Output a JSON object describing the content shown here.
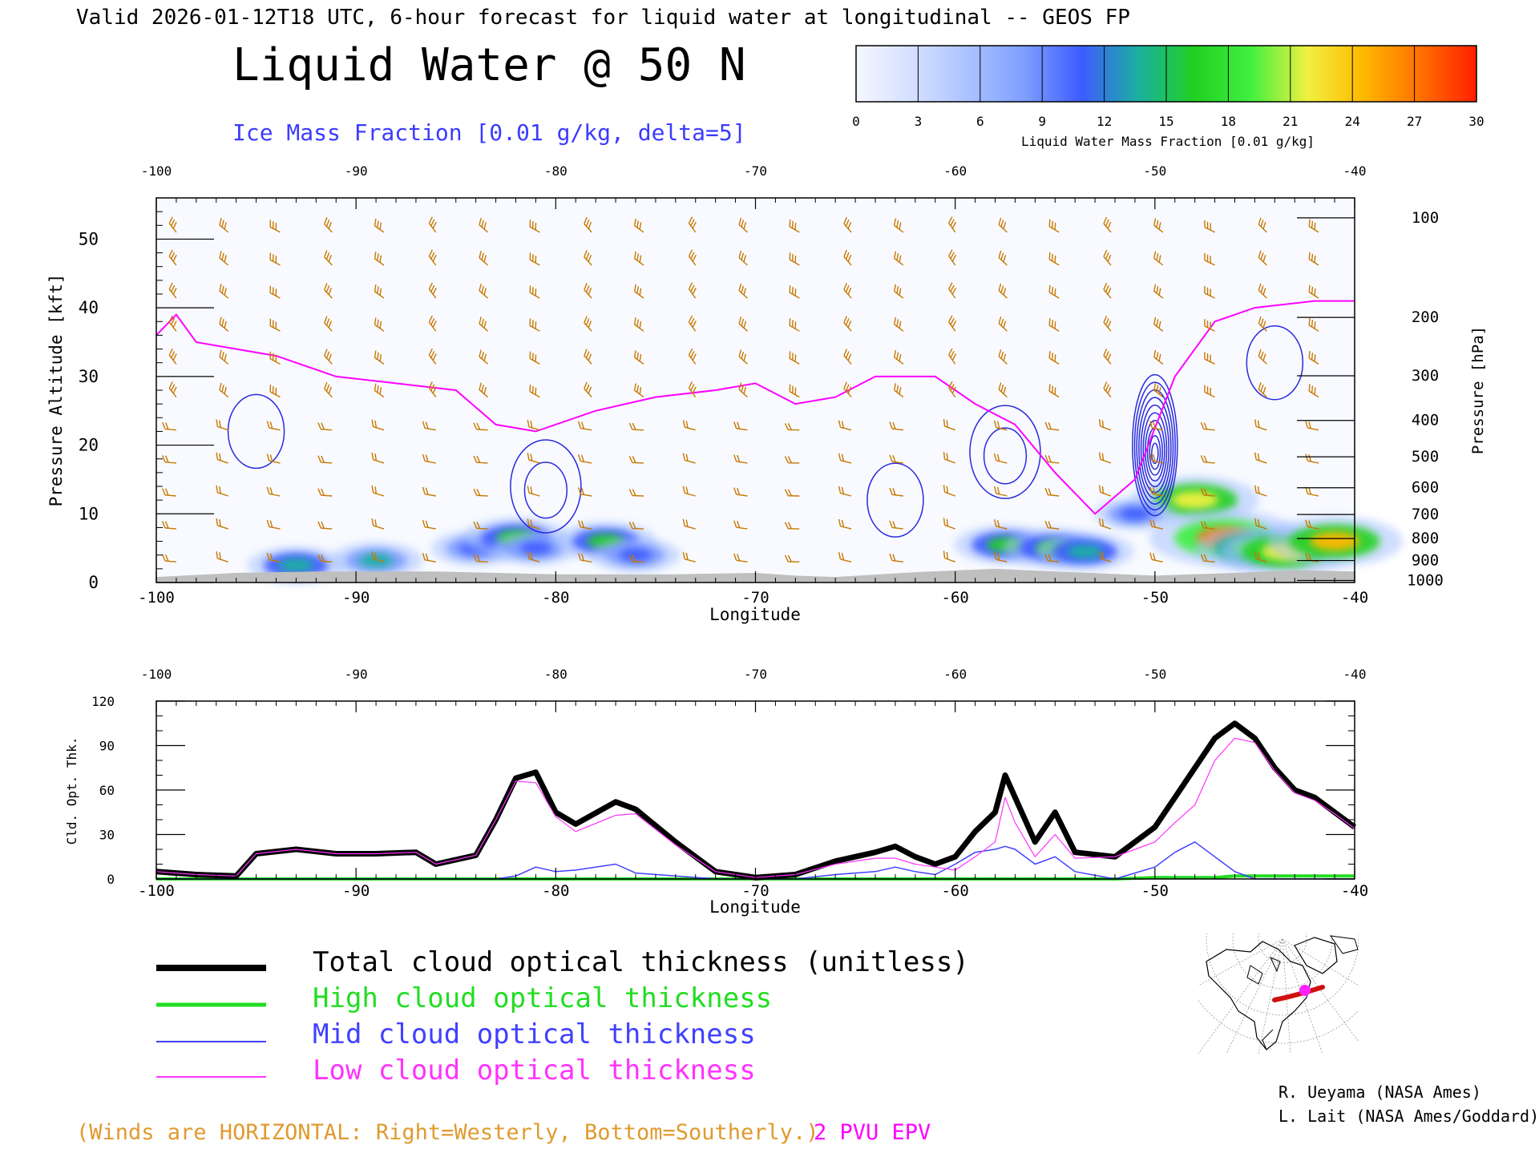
{
  "header": {
    "valid_line": "Valid 2026-01-12T18 UTC, 6-hour forecast for liquid water at longitudinal -- GEOS FP",
    "title": "Liquid Water @ 50 N",
    "subtitle": "Ice Mass Fraction [0.01 g/kg, delta=5]"
  },
  "colorbar": {
    "ticks": [
      "0",
      "3",
      "6",
      "9",
      "12",
      "15",
      "18",
      "21",
      "24",
      "27",
      "30"
    ],
    "label": "Liquid Water Mass Fraction [0.01 g/kg]",
    "colors": [
      "#f5f7ff",
      "#d4e0ff",
      "#a9c2ff",
      "#7e9dff",
      "#3d5cff",
      "#1ab0a0",
      "#20d020",
      "#40f040",
      "#f0f040",
      "#ffb800",
      "#ff7000",
      "#ff2000"
    ]
  },
  "top_panel": {
    "ylabel_left": "Pressure Altitude [kft]",
    "ylabel_right": "Pressure [hPa]",
    "xlabel": "Longitude",
    "x_ticks": [
      "-100",
      "-90",
      "-80",
      "-70",
      "-60",
      "-50",
      "-40"
    ],
    "y_ticks": [
      "0",
      "10",
      "20",
      "30",
      "40",
      "50"
    ],
    "pressure_ticks": [
      {
        "label": "100",
        "kft": 53.1
      },
      {
        "label": "200",
        "kft": 38.6
      },
      {
        "label": "300",
        "kft": 30.1
      },
      {
        "label": "400",
        "kft": 23.6
      },
      {
        "label": "500",
        "kft": 18.3
      },
      {
        "label": "600",
        "kft": 13.8
      },
      {
        "label": "700",
        "kft": 9.9
      },
      {
        "label": "800",
        "kft": 6.4
      },
      {
        "label": "900",
        "kft": 3.2
      },
      {
        "label": "1000",
        "kft": 0.3
      }
    ],
    "colors": {
      "wind_barbs": "#c87800",
      "ice_contours": "#2a2adc",
      "epv_line": "#ff00ff",
      "terrain": "#bfbfbf"
    }
  },
  "bottom_panel": {
    "ylabel": "Cld. Opt. Thk.",
    "xlabel": "Longitude",
    "x_ticks": [
      "-100",
      "-90",
      "-80",
      "-70",
      "-60",
      "-50",
      "-40"
    ],
    "y_ticks": [
      "0",
      "30",
      "60",
      "90",
      "120"
    ]
  },
  "legend": {
    "items": [
      {
        "label": "Total cloud optical thickness (unitless)",
        "color": "#000000"
      },
      {
        "label": "High cloud optical thickness",
        "color": "#22dd22"
      },
      {
        "label": "Mid cloud optical thickness",
        "color": "#4040ff"
      },
      {
        "label": "Low cloud optical thickness",
        "color": "#ff33ff"
      }
    ]
  },
  "footer": {
    "winds_note": "(Winds are HORIZONTAL: Right=Westerly, Bottom=Southerly.)",
    "epv_note": "2 PVU EPV",
    "credit_1": "R. Ueyama (NASA Ames)",
    "credit_2": "L. Lait (NASA Ames/Goddard)"
  },
  "chart_data": [
    {
      "type": "heatmap",
      "title": "Liquid Water @ 50 N",
      "xlabel": "Longitude",
      "ylabel": "Pressure Altitude [kft]",
      "xlim": [
        -100,
        -40
      ],
      "ylim": [
        0,
        56
      ],
      "units": "Liquid Water Mass Fraction [0.01 g/kg]",
      "color_range": [
        0,
        30
      ],
      "liquid_water_cells": [
        {
          "lon": -93,
          "kft": 2.5,
          "value": 14
        },
        {
          "lon": -89,
          "kft": 3.2,
          "value": 13
        },
        {
          "lon": -84,
          "kft": 5,
          "value": 12
        },
        {
          "lon": -82,
          "kft": 6.5,
          "value": 16
        },
        {
          "lon": -81,
          "kft": 5,
          "value": 11
        },
        {
          "lon": -77.5,
          "kft": 6,
          "value": 15
        },
        {
          "lon": -76,
          "kft": 4,
          "value": 12
        },
        {
          "lon": -57.5,
          "kft": 5.5,
          "value": 15
        },
        {
          "lon": -55,
          "kft": 5,
          "value": 16
        },
        {
          "lon": -53.5,
          "kft": 4.5,
          "value": 14
        },
        {
          "lon": -48,
          "kft": 12,
          "value": 22
        },
        {
          "lon": -46.5,
          "kft": 6.5,
          "value": 28
        },
        {
          "lon": -45,
          "kft": 5,
          "value": 20
        },
        {
          "lon": -43.5,
          "kft": 4.5,
          "value": 22
        },
        {
          "lon": -41,
          "kft": 6,
          "value": 24
        },
        {
          "lon": -51,
          "kft": 10,
          "value": 10
        }
      ],
      "ice_contours": [
        {
          "center_lon": -95,
          "center_kft": 22,
          "max": 5
        },
        {
          "center_lon": -80.5,
          "center_kft": 14,
          "max": 10
        },
        {
          "center_lon": -63,
          "center_kft": 12,
          "max": 5
        },
        {
          "center_lon": -57.5,
          "center_kft": 19,
          "max": 10
        },
        {
          "center_lon": -50,
          "center_kft": 20,
          "max": 50
        },
        {
          "center_lon": -44,
          "center_kft": 32,
          "max": 5
        }
      ],
      "epv_2pvu_kft": {
        "lon": [
          -100,
          -99,
          -98,
          -96,
          -94,
          -91,
          -88,
          -85,
          -83,
          -81,
          -78,
          -75,
          -72,
          -70,
          -68,
          -66,
          -64,
          -61,
          -59,
          -57,
          -55,
          -53,
          -51,
          -49,
          -47,
          -45,
          -42,
          -40
        ],
        "kft": [
          36,
          39,
          35,
          34,
          33,
          30,
          29,
          28,
          23,
          22,
          25,
          27,
          28,
          29,
          26,
          27,
          30,
          30,
          26,
          23,
          16,
          10,
          15,
          30,
          38,
          40,
          41,
          41
        ]
      }
    },
    {
      "type": "line",
      "xlabel": "Longitude",
      "ylabel": "Cld. Opt. Thk.",
      "xlim": [
        -100,
        -40
      ],
      "ylim": [
        0,
        120
      ],
      "x": [
        -100,
        -98,
        -96,
        -95,
        -93,
        -91,
        -89,
        -87,
        -86,
        -84,
        -83,
        -82,
        -81,
        -80,
        -79,
        -77,
        -76,
        -74,
        -72,
        -70,
        -68,
        -66,
        -64,
        -63,
        -62,
        -61,
        -60,
        -59,
        -58,
        -57.5,
        -57,
        -56,
        -55,
        -54,
        -52,
        -50,
        -49,
        -48,
        -47,
        -46,
        -45,
        -44,
        -43,
        -42,
        -41,
        -40
      ],
      "series": [
        {
          "name": "Total cloud optical thickness (unitless)",
          "color": "#000000",
          "values": [
            5,
            3,
            2,
            17,
            20,
            17,
            17,
            18,
            10,
            16,
            40,
            68,
            72,
            45,
            37,
            52,
            47,
            25,
            5,
            1,
            3,
            12,
            18,
            22,
            15,
            10,
            15,
            32,
            45,
            70,
            55,
            25,
            45,
            18,
            15,
            35,
            55,
            75,
            95,
            105,
            95,
            75,
            60,
            55,
            45,
            35
          ]
        },
        {
          "name": "High cloud optical thickness",
          "color": "#22dd22",
          "values": [
            0,
            0,
            0,
            0,
            0,
            0,
            0,
            0,
            0,
            0,
            0,
            0,
            0,
            0,
            0,
            0,
            0,
            0,
            0,
            0,
            0,
            0,
            0,
            0,
            0,
            0,
            0,
            0,
            0,
            0,
            0,
            0,
            0,
            0,
            0,
            1,
            1,
            1,
            1,
            2,
            2,
            2,
            2,
            2,
            2,
            2
          ]
        },
        {
          "name": "Mid cloud optical thickness",
          "color": "#4040ff",
          "values": [
            0,
            0,
            0,
            0,
            0,
            0,
            0,
            0,
            0,
            0,
            0,
            2,
            8,
            5,
            6,
            10,
            4,
            2,
            0,
            0,
            0,
            3,
            5,
            8,
            5,
            3,
            10,
            18,
            20,
            22,
            20,
            10,
            15,
            5,
            0,
            8,
            18,
            25,
            15,
            5,
            0,
            0,
            0,
            0,
            0,
            0
          ]
        },
        {
          "name": "Low cloud optical thickness",
          "color": "#ff33ff",
          "values": [
            5,
            3,
            2,
            17,
            20,
            17,
            17,
            18,
            10,
            16,
            40,
            66,
            65,
            42,
            32,
            43,
            44,
            23,
            5,
            1,
            3,
            10,
            14,
            14,
            10,
            8,
            6,
            15,
            25,
            55,
            38,
            15,
            30,
            14,
            15,
            25,
            38,
            50,
            80,
            95,
            92,
            73,
            58,
            53,
            44,
            34
          ]
        }
      ]
    }
  ]
}
